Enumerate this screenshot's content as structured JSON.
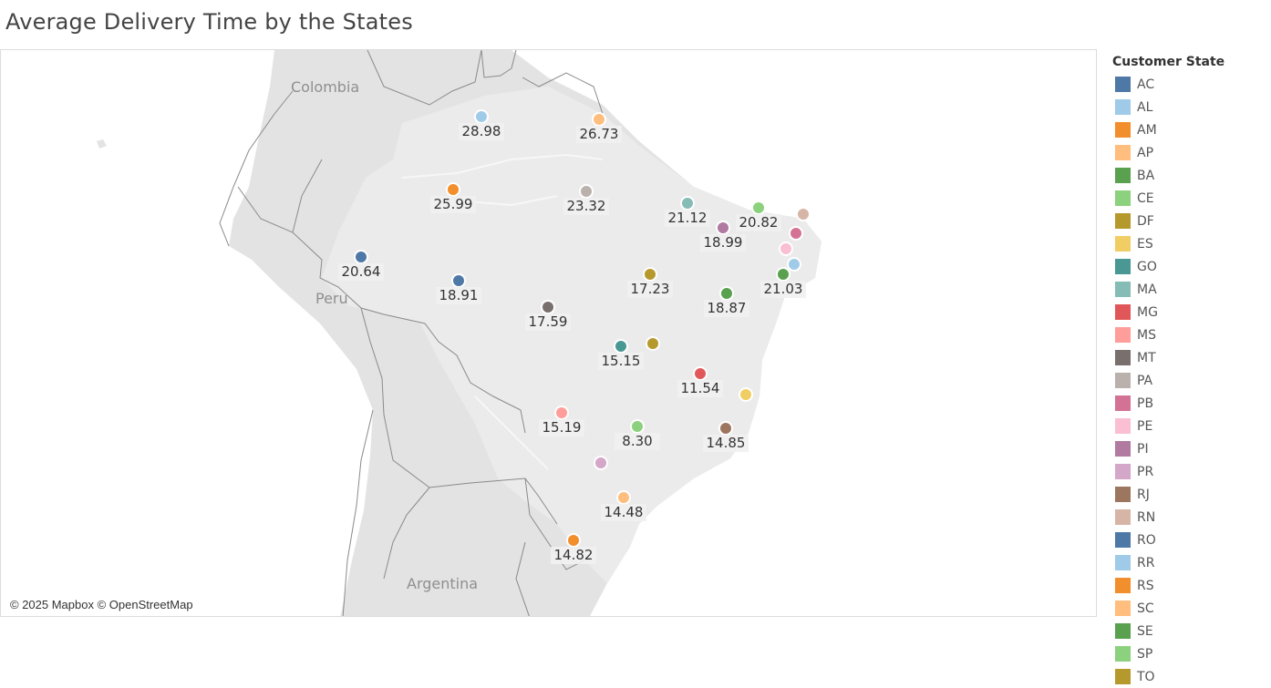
{
  "title": "Average Delivery Time by the States",
  "map": {
    "country_labels": [
      "Colombia",
      "Peru",
      "Argentina"
    ],
    "attribution": "© 2025 Mapbox © OpenStreetMap",
    "markers": [
      {
        "state": "RR",
        "value": "28.98"
      },
      {
        "state": "AP",
        "value": "26.73"
      },
      {
        "state": "AM",
        "value": "25.99"
      },
      {
        "state": "PA",
        "value": "23.32"
      },
      {
        "state": "MA",
        "value": "21.12"
      },
      {
        "state": "CE",
        "value": "20.82"
      },
      {
        "state": "PI",
        "value": "18.99"
      },
      {
        "state": "RN",
        "value": ""
      },
      {
        "state": "PB",
        "value": ""
      },
      {
        "state": "PE",
        "value": ""
      },
      {
        "state": "AL",
        "value": ""
      },
      {
        "state": "SE",
        "value": "21.03"
      },
      {
        "state": "AC",
        "value": "20.64"
      },
      {
        "state": "RO",
        "value": "18.91"
      },
      {
        "state": "TO",
        "value": "17.23"
      },
      {
        "state": "BA",
        "value": "18.87"
      },
      {
        "state": "MT",
        "value": "17.59"
      },
      {
        "state": "GO",
        "value": "15.15"
      },
      {
        "state": "DF",
        "value": ""
      },
      {
        "state": "MG",
        "value": "11.54"
      },
      {
        "state": "ES",
        "value": ""
      },
      {
        "state": "MS",
        "value": "15.19"
      },
      {
        "state": "SP",
        "value": "8.30"
      },
      {
        "state": "RJ",
        "value": "14.85"
      },
      {
        "state": "PR",
        "value": ""
      },
      {
        "state": "SC",
        "value": "14.48"
      },
      {
        "state": "RS",
        "value": "14.82"
      }
    ]
  },
  "legend": {
    "title": "Customer State",
    "items": [
      {
        "label": "AC",
        "color": "#4e79a7"
      },
      {
        "label": "AL",
        "color": "#a0cbe8"
      },
      {
        "label": "AM",
        "color": "#f28e2b"
      },
      {
        "label": "AP",
        "color": "#ffbe7d"
      },
      {
        "label": "BA",
        "color": "#59a14f"
      },
      {
        "label": "CE",
        "color": "#8cd17d"
      },
      {
        "label": "DF",
        "color": "#b6992d"
      },
      {
        "label": "ES",
        "color": "#f1ce63"
      },
      {
        "label": "GO",
        "color": "#499894"
      },
      {
        "label": "MA",
        "color": "#86bcb6"
      },
      {
        "label": "MG",
        "color": "#e15759"
      },
      {
        "label": "MS",
        "color": "#ff9d9a"
      },
      {
        "label": "MT",
        "color": "#79706e"
      },
      {
        "label": "PA",
        "color": "#bab0ac"
      },
      {
        "label": "PB",
        "color": "#d37295"
      },
      {
        "label": "PE",
        "color": "#fabfd2"
      },
      {
        "label": "PI",
        "color": "#b07aa1"
      },
      {
        "label": "PR",
        "color": "#d4a6c8"
      },
      {
        "label": "RJ",
        "color": "#9d7660"
      },
      {
        "label": "RN",
        "color": "#d7b5a6"
      },
      {
        "label": "RO",
        "color": "#4e79a7"
      },
      {
        "label": "RR",
        "color": "#a0cbe8"
      },
      {
        "label": "RS",
        "color": "#f28e2b"
      },
      {
        "label": "SC",
        "color": "#ffbe7d"
      },
      {
        "label": "SE",
        "color": "#59a14f"
      },
      {
        "label": "SP",
        "color": "#8cd17d"
      },
      {
        "label": "TO",
        "color": "#b6992d"
      }
    ]
  }
}
